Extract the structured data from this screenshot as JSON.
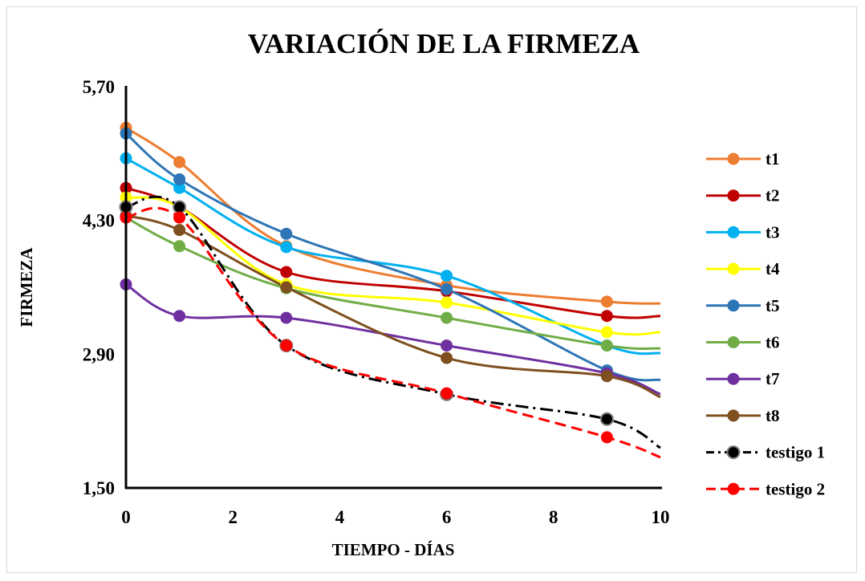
{
  "chart_data": {
    "type": "line",
    "title": "VARIACIÓN DE LA FIRMEZA",
    "xlabel": "TIEMPO - DÍAS",
    "ylabel": "FIRMEZA",
    "xlim": [
      0,
      10
    ],
    "ylim": [
      1.5,
      5.7
    ],
    "xticks": [
      "0",
      "2",
      "4",
      "6",
      "8",
      "10"
    ],
    "xtick_values": [
      0,
      2,
      4,
      6,
      8,
      10
    ],
    "yticks": [
      "1,50",
      "2,90",
      "4,30",
      "5,70"
    ],
    "ytick_values": [
      1.5,
      2.9,
      4.3,
      5.7
    ],
    "grid": false,
    "legend_position": "right",
    "smooth": true,
    "x": [
      0,
      1,
      3,
      6,
      9
    ],
    "series": [
      {
        "name": "t1",
        "color": "#ED7D31",
        "dash": "solid",
        "marker_stroke": "",
        "values": [
          5.27,
          4.91,
          4.03,
          3.62,
          3.45
        ],
        "end": [
          10,
          3.43
        ]
      },
      {
        "name": "t2",
        "color": "#C00000",
        "dash": "solid",
        "marker_stroke": "",
        "values": [
          4.64,
          4.44,
          3.76,
          3.56,
          3.3
        ],
        "end": [
          10,
          3.3
        ]
      },
      {
        "name": "t3",
        "color": "#00B0F0",
        "dash": "solid",
        "marker_stroke": "",
        "values": [
          4.95,
          4.64,
          4.02,
          3.72,
          2.99
        ],
        "end": [
          10,
          2.91
        ]
      },
      {
        "name": "t4",
        "color": "#FFFF00",
        "dash": "solid",
        "marker_stroke": "",
        "values": [
          4.54,
          4.44,
          3.63,
          3.44,
          3.13
        ],
        "end": [
          10,
          3.13
        ]
      },
      {
        "name": "t5",
        "color": "#2E75B6",
        "dash": "solid",
        "marker_stroke": "",
        "values": [
          5.21,
          4.73,
          4.16,
          3.58,
          2.73
        ],
        "end": [
          10,
          2.63
        ]
      },
      {
        "name": "t6",
        "color": "#70AD47",
        "dash": "solid",
        "marker_stroke": "",
        "values": [
          4.33,
          4.03,
          3.59,
          3.28,
          2.99
        ],
        "end": [
          10,
          2.96
        ]
      },
      {
        "name": "t7",
        "color": "#7030A0",
        "dash": "solid",
        "marker_stroke": "",
        "values": [
          3.63,
          3.3,
          3.28,
          2.99,
          2.7
        ],
        "end": [
          10,
          2.48
        ]
      },
      {
        "name": "t8",
        "color": "#7F4F1F",
        "dash": "solid",
        "marker_stroke": "",
        "values": [
          4.35,
          4.2,
          3.6,
          2.86,
          2.67
        ],
        "end": [
          10,
          2.45
        ]
      },
      {
        "name": "testigo 1",
        "color": "#000000",
        "dash": "dashdot",
        "marker_stroke": "#7F7F7F",
        "values": [
          4.44,
          4.44,
          2.99,
          2.48,
          2.22
        ],
        "end": [
          10,
          1.92
        ]
      },
      {
        "name": "testigo 2",
        "color": "#FF0000",
        "dash": "dash",
        "marker_stroke": "",
        "values": [
          4.33,
          4.33,
          2.99,
          2.49,
          2.03
        ],
        "end": [
          10,
          1.82
        ]
      }
    ]
  }
}
